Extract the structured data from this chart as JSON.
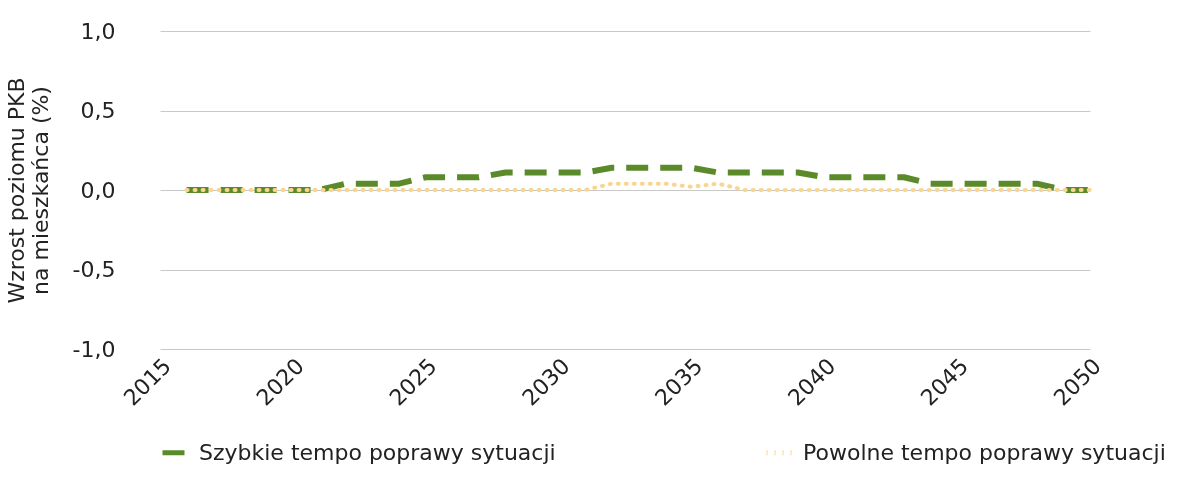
{
  "chart_data": {
    "type": "line",
    "ylabel": "Wzrost poziomu PKB na mieszkańca (%)",
    "x": [
      2016,
      2017,
      2018,
      2019,
      2020,
      2021,
      2022,
      2023,
      2024,
      2025,
      2026,
      2027,
      2028,
      2029,
      2030,
      2031,
      2032,
      2033,
      2034,
      2035,
      2036,
      2037,
      2038,
      2039,
      2040,
      2041,
      2042,
      2043,
      2044,
      2045,
      2046,
      2047,
      2048,
      2049,
      2050
    ],
    "series": [
      {
        "name": "Szybkie tempo poprawy sytuacji",
        "color": "#5b8a2b",
        "line_style": "dashed",
        "values": [
          0,
          0,
          0,
          0,
          0,
          0,
          0.04,
          0.04,
          0.04,
          0.08,
          0.08,
          0.08,
          0.11,
          0.11,
          0.11,
          0.11,
          0.14,
          0.14,
          0.14,
          0.14,
          0.11,
          0.11,
          0.11,
          0.11,
          0.08,
          0.08,
          0.08,
          0.08,
          0.04,
          0.04,
          0.04,
          0.04,
          0.04,
          0,
          0
        ]
      },
      {
        "name": "Powolne tempo poprawy sytuacji",
        "color": "#f9d58e",
        "line_style": "dotted",
        "values": [
          0,
          0,
          0,
          0,
          0,
          0,
          0,
          0,
          0,
          0,
          0,
          0,
          0,
          0,
          0,
          0,
          0.04,
          0.04,
          0.04,
          0.02,
          0.04,
          0,
          0,
          0,
          0,
          0,
          0,
          0,
          0,
          0,
          0,
          0,
          0,
          0,
          0
        ]
      }
    ],
    "xlim": [
      2015,
      2050
    ],
    "xticks": [
      2015,
      2020,
      2025,
      2030,
      2035,
      2040,
      2045,
      2050
    ],
    "ylim": [
      -1,
      1
    ],
    "yticks": [
      {
        "value": -1,
        "label": "-1,0"
      },
      {
        "value": -0.5,
        "label": "-0,5"
      },
      {
        "value": 0,
        "label": "0,0"
      },
      {
        "value": 0.5,
        "label": "0,5"
      },
      {
        "value": 1,
        "label": "1,0"
      }
    ],
    "grid": "y",
    "legend": "bottom"
  }
}
